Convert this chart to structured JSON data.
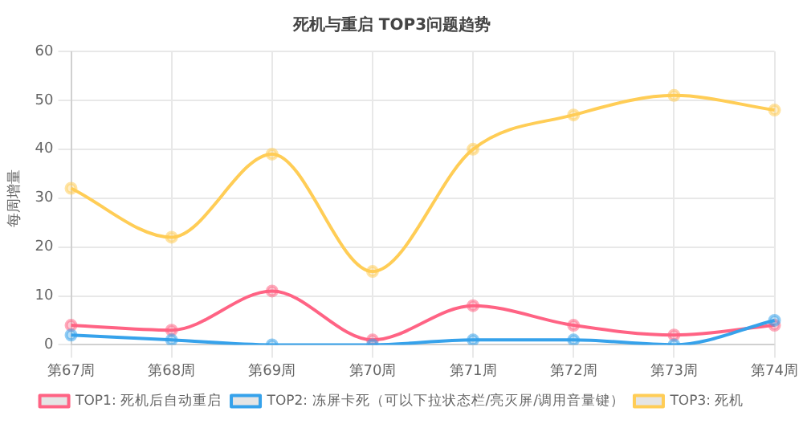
{
  "chart_data": {
    "type": "line",
    "title": "死机与重启 TOP3问题趋势",
    "ylabel": "每周增量",
    "categories": [
      "第67周",
      "第68周",
      "第69周",
      "第70周",
      "第71周",
      "第72周",
      "第73周",
      "第74周"
    ],
    "series": [
      {
        "name": "TOP1: 死机后自动重启",
        "color": "#ff6384",
        "values": [
          4,
          3,
          11,
          1,
          8,
          4,
          2,
          4
        ]
      },
      {
        "name": "TOP2: 冻屏卡死（可以下拉状态栏/亮灭屏/调用音量键）",
        "color": "#36a2eb",
        "values": [
          2,
          1,
          0,
          0,
          1,
          1,
          0,
          5
        ]
      },
      {
        "name": "TOP3: 死机",
        "color": "#ffcd56",
        "values": [
          32,
          22,
          39,
          15,
          40,
          47,
          51,
          48
        ]
      }
    ],
    "ylim": [
      0,
      60
    ],
    "yticks": [
      0,
      10,
      20,
      30,
      40,
      50,
      60
    ],
    "grid": true,
    "legend": "bottom",
    "marker": "circle",
    "line_style": "solid"
  }
}
